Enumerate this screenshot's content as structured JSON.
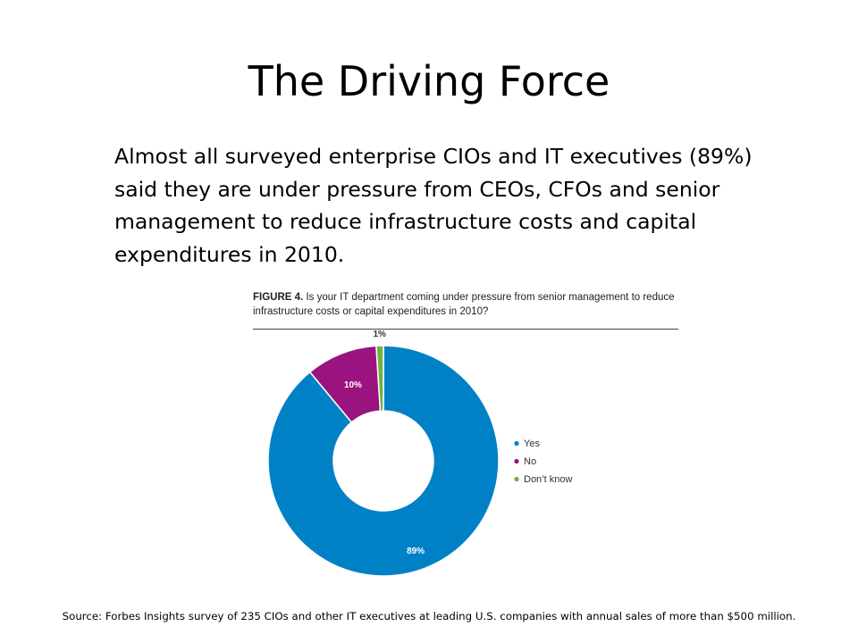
{
  "slide": {
    "title": "The Driving Force",
    "body": "Almost all surveyed enterprise CIOs and IT executives (89%) said they are under pressure from CEOs, CFOs and senior management to reduce infrastructure costs and capital expenditures in 2010.",
    "figure_label": "FIGURE 4.",
    "figure_question": "Is your IT department coming under pressure from senior management  to reduce infrastructure costs or capital expenditures in 2010?",
    "source": "Source: Forbes Insights survey of 235 CIOs and other IT executives at leading U.S. companies with annual sales of more than $500 million."
  },
  "chart_data": {
    "type": "pie",
    "variant": "donut",
    "title": "FIGURE 4. Is your IT department coming under pressure from senior management  to reduce infrastructure costs or capital expenditures in 2010?",
    "categories": [
      "Yes",
      "No",
      "Don't know"
    ],
    "values": [
      89,
      10,
      1
    ],
    "labels": [
      "89%",
      "10%",
      "1%"
    ],
    "unit": "%",
    "colors": [
      "#0081c6",
      "#9b137f",
      "#6fb33f"
    ],
    "legend": {
      "placement": "right",
      "entries": [
        "Yes",
        "No",
        "Don’t know"
      ]
    }
  }
}
